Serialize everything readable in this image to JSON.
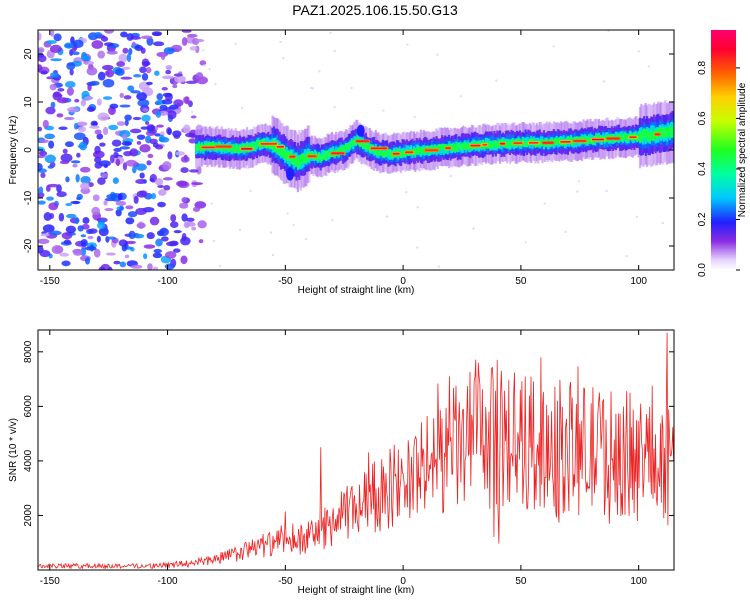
{
  "title": "PAZ1.2025.106.15.50.G13",
  "chart_data": [
    {
      "type": "heatmap",
      "xlabel": "Height of straight line (km)",
      "ylabel": "Frequency (Hz)",
      "xlim": [
        -155,
        115
      ],
      "ylim": [
        -25,
        25
      ],
      "xticks": [
        -150,
        -100,
        -50,
        0,
        50,
        100
      ],
      "yticks": [
        -20,
        -10,
        0,
        10,
        20
      ],
      "colorbar": {
        "label": "Normalized spectral amplitude",
        "range": [
          0.0,
          0.95
        ],
        "ticks": [
          0.0,
          0.2,
          0.4,
          0.6,
          0.8
        ],
        "colormap": "hsv"
      },
      "noise_region": {
        "x_range": [
          -155,
          -85
        ],
        "y_range": [
          -25,
          25
        ],
        "amplitude": [
          0.05,
          0.4
        ]
      },
      "ridge": [
        {
          "x": -88,
          "y": 0.5
        },
        {
          "x": -80,
          "y": 0.7
        },
        {
          "x": -75,
          "y": 0.5
        },
        {
          "x": -70,
          "y": 0.2
        },
        {
          "x": -65,
          "y": 0.5
        },
        {
          "x": -60,
          "y": 1.5
        },
        {
          "x": -55,
          "y": 1.0
        },
        {
          "x": -50,
          "y": -1.0
        },
        {
          "x": -45,
          "y": -2.5
        },
        {
          "x": -40,
          "y": -1.0
        },
        {
          "x": -35,
          "y": -1.5
        },
        {
          "x": -30,
          "y": -0.5
        },
        {
          "x": -25,
          "y": 0.0
        },
        {
          "x": -20,
          "y": 2.0
        },
        {
          "x": -15,
          "y": 0.5
        },
        {
          "x": -10,
          "y": -0.5
        },
        {
          "x": -5,
          "y": -0.8
        },
        {
          "x": 0,
          "y": -0.5
        },
        {
          "x": 10,
          "y": 0.0
        },
        {
          "x": 20,
          "y": 0.5
        },
        {
          "x": 30,
          "y": 1.0
        },
        {
          "x": 40,
          "y": 1.3
        },
        {
          "x": 50,
          "y": 1.5
        },
        {
          "x": 60,
          "y": 1.5
        },
        {
          "x": 70,
          "y": 1.8
        },
        {
          "x": 80,
          "y": 2.2
        },
        {
          "x": 90,
          "y": 2.5
        },
        {
          "x": 100,
          "y": 2.8
        },
        {
          "x": 110,
          "y": 3.5
        },
        {
          "x": 115,
          "y": 4.0
        }
      ]
    },
    {
      "type": "line",
      "xlabel": "Height of straight line (km)",
      "ylabel": "SNR (10 * v/v)",
      "xlim": [
        -155,
        115
      ],
      "ylim": [
        0,
        8800
      ],
      "xticks": [
        -150,
        -100,
        -50,
        0,
        50,
        100
      ],
      "yticks": [
        2000,
        4000,
        6000,
        8000
      ],
      "series": [
        {
          "color": "#ee2222",
          "envelope": [
            {
              "x": -155,
              "y": 150
            },
            {
              "x": -130,
              "y": 150
            },
            {
              "x": -110,
              "y": 150
            },
            {
              "x": -100,
              "y": 170
            },
            {
              "x": -90,
              "y": 250
            },
            {
              "x": -80,
              "y": 400
            },
            {
              "x": -70,
              "y": 600
            },
            {
              "x": -60,
              "y": 900
            },
            {
              "x": -50,
              "y": 1000
            },
            {
              "x": -40,
              "y": 1200
            },
            {
              "x": -30,
              "y": 1700
            },
            {
              "x": -20,
              "y": 2300
            },
            {
              "x": -10,
              "y": 2800
            },
            {
              "x": 0,
              "y": 3300
            },
            {
              "x": 10,
              "y": 3800
            },
            {
              "x": 20,
              "y": 4300
            },
            {
              "x": 30,
              "y": 4800
            },
            {
              "x": 40,
              "y": 4800
            },
            {
              "x": 50,
              "y": 4700
            },
            {
              "x": 60,
              "y": 4600
            },
            {
              "x": 70,
              "y": 4500
            },
            {
              "x": 80,
              "y": 4400
            },
            {
              "x": 90,
              "y": 4300
            },
            {
              "x": 100,
              "y": 4200
            },
            {
              "x": 110,
              "y": 4100
            },
            {
              "x": 115,
              "y": 4000
            }
          ],
          "peaks": [
            {
              "x": -50,
              "y": 2150
            },
            {
              "x": -47,
              "y": 1700
            },
            {
              "x": -35,
              "y": 4500
            },
            {
              "x": 5,
              "y": 4800
            },
            {
              "x": 30,
              "y": 6900
            },
            {
              "x": 40,
              "y": 7700
            },
            {
              "x": 112,
              "y": 8700
            }
          ]
        }
      ]
    }
  ]
}
